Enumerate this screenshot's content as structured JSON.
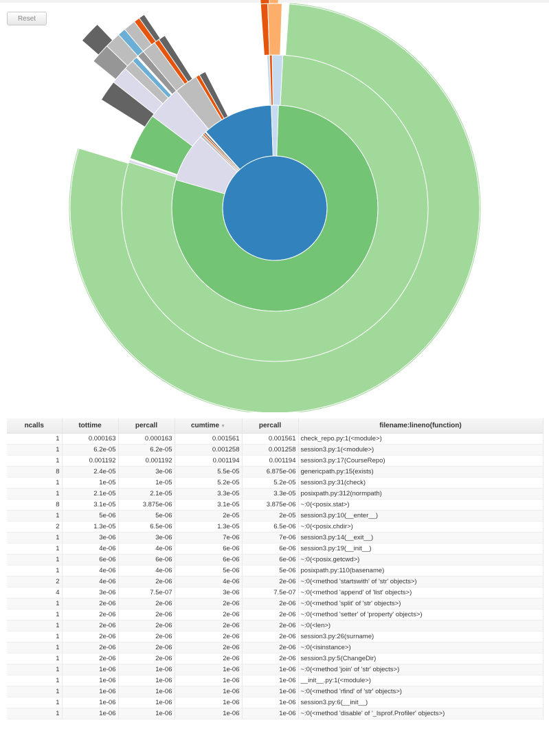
{
  "toolbar": {
    "reset_label": "Reset"
  },
  "chart_data": {
    "type": "sunburst",
    "title": "",
    "colors": {
      "blue": "#3182bd",
      "green": "#74c476",
      "light_green": "#a1d99b",
      "dark_gray": "#636363",
      "gray": "#969696",
      "light_gray": "#bdbdbd",
      "lavender": "#dadaeb",
      "orange": "#e6550d",
      "light_orange": "#fdae6b",
      "light_blue": "#c6dbef",
      "sky_blue": "#6baed6"
    },
    "rings": [
      {
        "level": 1,
        "segments": [
          {
            "name": "check_repo.py:1(<module>)",
            "fraction": 1.0,
            "color": "#3182bd"
          }
        ]
      },
      {
        "level": 2,
        "segments": [
          {
            "name": "session3.py:1(<module>)",
            "fraction": 0.806,
            "color": "#74c476"
          },
          {
            "name": "genericpath.py:15(exists)",
            "fraction": 0.035,
            "color": "#dadaeb"
          },
          {
            "name": "check_repo.py:1(<module>) other",
            "fraction": 0.12,
            "color": "#3182bd"
          }
        ]
      },
      {
        "level": 3,
        "segments": [
          {
            "name": "session3.py:17(CourseRepo)",
            "fraction": 0.765,
            "color": "#a1d99b"
          },
          {
            "name": "session3.py:31(check)",
            "fraction": 0.033,
            "color": "#74c476"
          },
          {
            "name": "posixpath.py:312(normpath)",
            "fraction": 0.021,
            "color": "#636363"
          },
          {
            "name": "~:0(<posix.stat>)",
            "fraction": 0.02,
            "color": "#bdbdbd"
          }
        ]
      },
      {
        "level": 4,
        "segments": [
          {
            "name": "session3.py:17(CourseRepo) children",
            "fraction": 0.765,
            "color": "#a1d99b"
          },
          {
            "name": "~:0(<posix.chdir>)",
            "fraction": 0.008,
            "color": "#636363"
          },
          {
            "name": "session3.py:10(__enter__)",
            "fraction": 0.013,
            "color": "#969696"
          }
        ]
      }
    ]
  },
  "table": {
    "columns": [
      "ncalls",
      "tottime",
      "percall",
      "cumtime",
      "percall",
      "filename:lineno(function)"
    ],
    "sort_icon": "sort-desc-icon",
    "rows": [
      [
        "1",
        "0.000163",
        "0.000163",
        "0.001561",
        "0.001561",
        "check_repo.py:1(<module>)"
      ],
      [
        "1",
        "6.2e-05",
        "6.2e-05",
        "0.001258",
        "0.001258",
        "session3.py:1(<module>)"
      ],
      [
        "1",
        "0.001192",
        "0.001192",
        "0.001194",
        "0.001194",
        "session3.py:17(CourseRepo)"
      ],
      [
        "8",
        "2.4e-05",
        "3e-06",
        "5.5e-05",
        "6.875e-06",
        "genericpath.py:15(exists)"
      ],
      [
        "1",
        "1e-05",
        "1e-05",
        "5.2e-05",
        "5.2e-05",
        "session3.py:31(check)"
      ],
      [
        "1",
        "2.1e-05",
        "2.1e-05",
        "3.3e-05",
        "3.3e-05",
        "posixpath.py:312(normpath)"
      ],
      [
        "8",
        "3.1e-05",
        "3.875e-06",
        "3.1e-05",
        "3.875e-06",
        "~:0(<posix.stat>)"
      ],
      [
        "1",
        "5e-06",
        "5e-06",
        "2e-05",
        "2e-05",
        "session3.py:10(__enter__)"
      ],
      [
        "2",
        "1.3e-05",
        "6.5e-06",
        "1.3e-05",
        "6.5e-06",
        "~:0(<posix.chdir>)"
      ],
      [
        "1",
        "3e-06",
        "3e-06",
        "7e-06",
        "7e-06",
        "session3.py:14(__exit__)"
      ],
      [
        "1",
        "4e-06",
        "4e-06",
        "6e-06",
        "6e-06",
        "session3.py:19(__init__)"
      ],
      [
        "1",
        "6e-06",
        "6e-06",
        "6e-06",
        "6e-06",
        "~:0(<posix.getcwd>)"
      ],
      [
        "1",
        "4e-06",
        "4e-06",
        "5e-06",
        "5e-06",
        "posixpath.py:110(basename)"
      ],
      [
        "2",
        "4e-06",
        "2e-06",
        "4e-06",
        "2e-06",
        "~:0(<method 'startswith' of 'str' objects>)"
      ],
      [
        "4",
        "3e-06",
        "7.5e-07",
        "3e-06",
        "7.5e-07",
        "~:0(<method 'append' of 'list' objects>)"
      ],
      [
        "1",
        "2e-06",
        "2e-06",
        "2e-06",
        "2e-06",
        "~:0(<method 'split' of 'str' objects>)"
      ],
      [
        "1",
        "2e-06",
        "2e-06",
        "2e-06",
        "2e-06",
        "~:0(<method 'setter' of 'property' objects>)"
      ],
      [
        "1",
        "2e-06",
        "2e-06",
        "2e-06",
        "2e-06",
        "~:0(<len>)"
      ],
      [
        "1",
        "2e-06",
        "2e-06",
        "2e-06",
        "2e-06",
        "session3.py:26(surname)"
      ],
      [
        "1",
        "2e-06",
        "2e-06",
        "2e-06",
        "2e-06",
        "~:0(<isinstance>)"
      ],
      [
        "1",
        "2e-06",
        "2e-06",
        "2e-06",
        "2e-06",
        "session3.py:5(ChangeDir)"
      ],
      [
        "1",
        "1e-06",
        "1e-06",
        "1e-06",
        "1e-06",
        "~:0(<method 'join' of 'str' objects>)"
      ],
      [
        "1",
        "1e-06",
        "1e-06",
        "1e-06",
        "1e-06",
        "__init__.py:1(<module>)"
      ],
      [
        "1",
        "1e-06",
        "1e-06",
        "1e-06",
        "1e-06",
        "~:0(<method 'rfind' of 'str' objects>)"
      ],
      [
        "1",
        "1e-06",
        "1e-06",
        "1e-06",
        "1e-06",
        "session3.py:6(__init__)"
      ],
      [
        "1",
        "1e-06",
        "1e-06",
        "1e-06",
        "1e-06",
        "~:0(<method 'disable' of '_lsprof.Profiler' objects>)"
      ]
    ]
  }
}
